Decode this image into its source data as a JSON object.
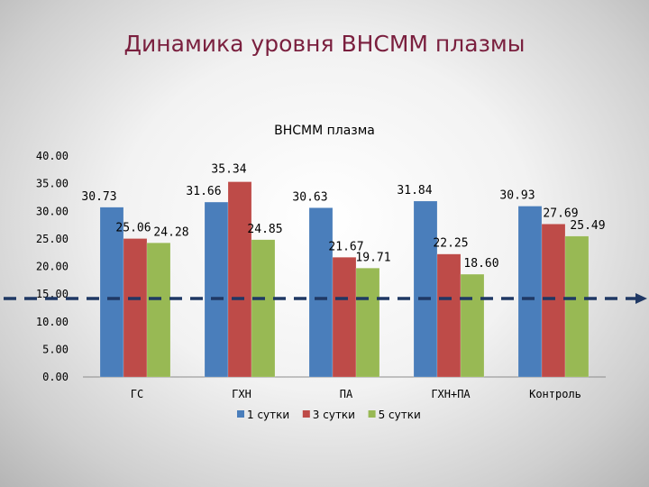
{
  "slide": {
    "title": "Динамика уровня ВНСММ плазмы"
  },
  "chart_data": {
    "type": "bar",
    "title": "ВНСММ плазма",
    "categories": [
      "ГС",
      "ГХН",
      "ПА",
      "ГХН+ПА",
      "Контроль"
    ],
    "series": [
      {
        "name": "1 сутки",
        "color": "#4a7ebb",
        "values": [
          30.73,
          31.66,
          30.63,
          31.84,
          30.93
        ],
        "labels": [
          "30.73",
          "31.66",
          "30.63",
          "31.84",
          "30.93"
        ]
      },
      {
        "name": "3 сутки",
        "color": "#be4b48",
        "values": [
          25.06,
          35.34,
          21.67,
          22.25,
          27.69
        ],
        "labels": [
          "25.06",
          "35.34",
          "21.67",
          "22.25",
          "27.69"
        ]
      },
      {
        "name": "5 сутки",
        "color": "#98b954",
        "values": [
          24.28,
          24.85,
          19.71,
          18.6,
          25.49
        ],
        "labels": [
          "24.28",
          "24.85",
          "19.71",
          "18.60",
          "25.49"
        ]
      }
    ],
    "ylim": [
      0,
      40
    ],
    "yticks": [
      "0.00",
      "5.00",
      "10.00",
      "15.00",
      "20.00",
      "25.00",
      "30.00",
      "35.00",
      "40.00"
    ],
    "reference_line": {
      "value": 14.2,
      "color": "#1f3864",
      "style": "dashed-arrow"
    },
    "grid": false,
    "legend_position": "bottom"
  }
}
